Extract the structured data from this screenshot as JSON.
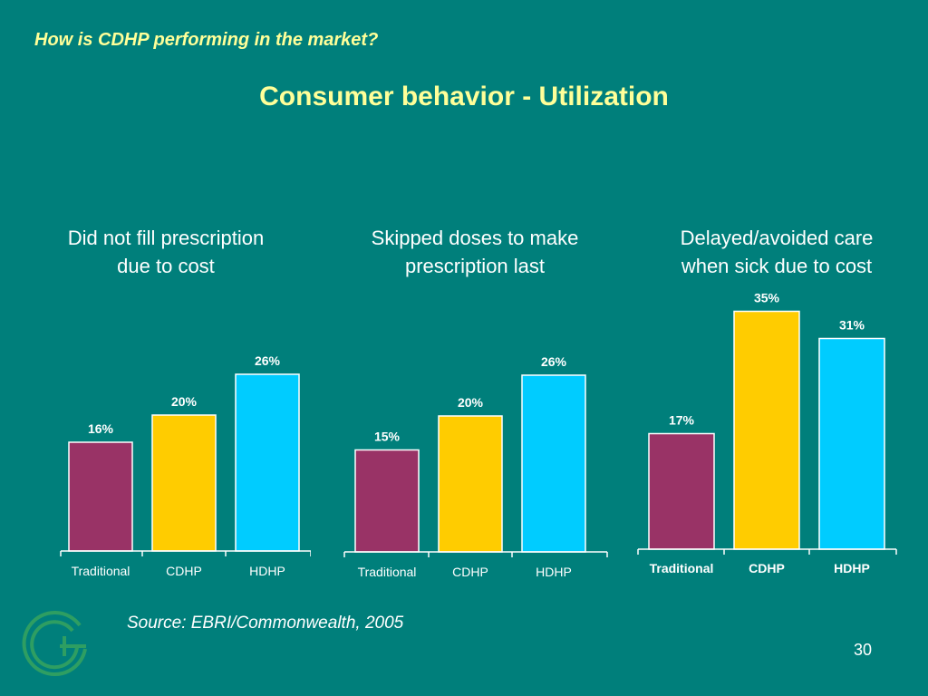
{
  "slide": {
    "kicker": "How is CDHP performing in the market?",
    "title": "Consumer behavior - Utilization",
    "source": "Source: EBRI/Commonwealth, 2005",
    "page_number": "30"
  },
  "colors": {
    "background": "#007F7B",
    "heading": "#FFFF99",
    "traditional": "#993366",
    "cdhp": "#FFCC00",
    "hdhp": "#00CCFF",
    "logo": "#2E9E62"
  },
  "logo": {
    "icon": "g-letter-logo-icon"
  },
  "chart_data": [
    {
      "type": "bar",
      "title_lines": [
        "Did not fill prescription",
        "due to cost"
      ],
      "categories": [
        "Traditional",
        "CDHP",
        "HDHP"
      ],
      "values": [
        16,
        20,
        26
      ],
      "value_labels": [
        "16%",
        "20%",
        "26%"
      ],
      "ylim": [
        0,
        40
      ]
    },
    {
      "type": "bar",
      "title_lines": [
        "Skipped doses to make",
        "prescription last"
      ],
      "categories": [
        "Traditional",
        "CDHP",
        "HDHP"
      ],
      "values": [
        15,
        20,
        26
      ],
      "value_labels": [
        "15%",
        "20%",
        "26%"
      ],
      "ylim": [
        0,
        40
      ]
    },
    {
      "type": "bar",
      "title_lines": [
        "Delayed/avoided care",
        "when sick due to cost"
      ],
      "categories": [
        "Traditional",
        "CDHP",
        "HDHP"
      ],
      "values": [
        17,
        35,
        31
      ],
      "value_labels": [
        "17%",
        "35%",
        "31%"
      ],
      "ylim": [
        0,
        40
      ]
    }
  ]
}
